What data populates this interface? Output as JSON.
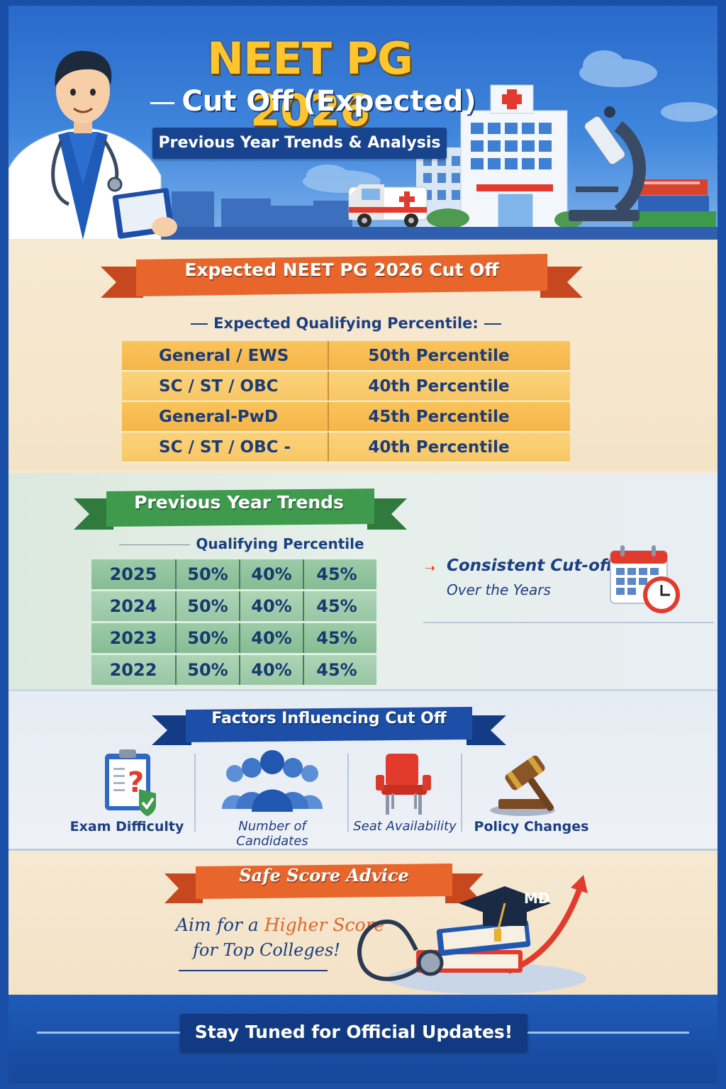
{
  "header": {
    "title": "NEET PG 2026",
    "subtitle": "Cut Off (Expected)",
    "tagline": "Previous Year Trends & Analysis"
  },
  "expected": {
    "banner": "Expected NEET PG 2026 Cut Off",
    "subheading": "Expected Qualifying Percentile:",
    "rows": [
      {
        "category": "General / EWS",
        "value": "50th Percentile"
      },
      {
        "category": "SC / ST / OBC",
        "value": "40th Percentile"
      },
      {
        "category": "General-PwD",
        "value": "45th Percentile"
      },
      {
        "category": "SC / ST / OBC - PwD",
        "value": "40th Percentile"
      }
    ]
  },
  "trends": {
    "banner": "Previous Year Trends",
    "subheading": "Qualifying Percentile",
    "rows": [
      {
        "year": "2025",
        "v1": "50%",
        "v2": "40%",
        "v3": "45%"
      },
      {
        "year": "2024",
        "v1": "50%",
        "v2": "40%",
        "v3": "45%"
      },
      {
        "year": "2023",
        "v1": "50%",
        "v2": "40%",
        "v3": "45%"
      },
      {
        "year": "2022",
        "v1": "50%",
        "v2": "40%",
        "v3": "45%"
      }
    ],
    "note_line1": "Consistent Cut-offs",
    "note_line2": "Over the Years"
  },
  "factors": {
    "banner": "Factors Influencing Cut Off",
    "items": [
      {
        "label": "Exam Difficulty",
        "icon": "clipboard-question-icon"
      },
      {
        "label": "Number of Candidates",
        "icon": "people-group-icon"
      },
      {
        "label": "Seat Availability",
        "icon": "chair-icon"
      },
      {
        "label": "Policy Changes",
        "icon": "gavel-icon"
      }
    ]
  },
  "advice": {
    "banner": "Safe Score Advice",
    "line1_prefix": "Aim for a ",
    "line1_highlight": "Higher Score",
    "line2": "for Top Colleges!",
    "cap_text": "MD"
  },
  "footer": {
    "text": "Stay Tuned for Official Updates!"
  },
  "colors": {
    "title_yellow": "#ffc52e",
    "navy": "#1c3f82",
    "orange": "#e4632a",
    "green": "#3f8f4f",
    "blue": "#1d4fa8"
  }
}
